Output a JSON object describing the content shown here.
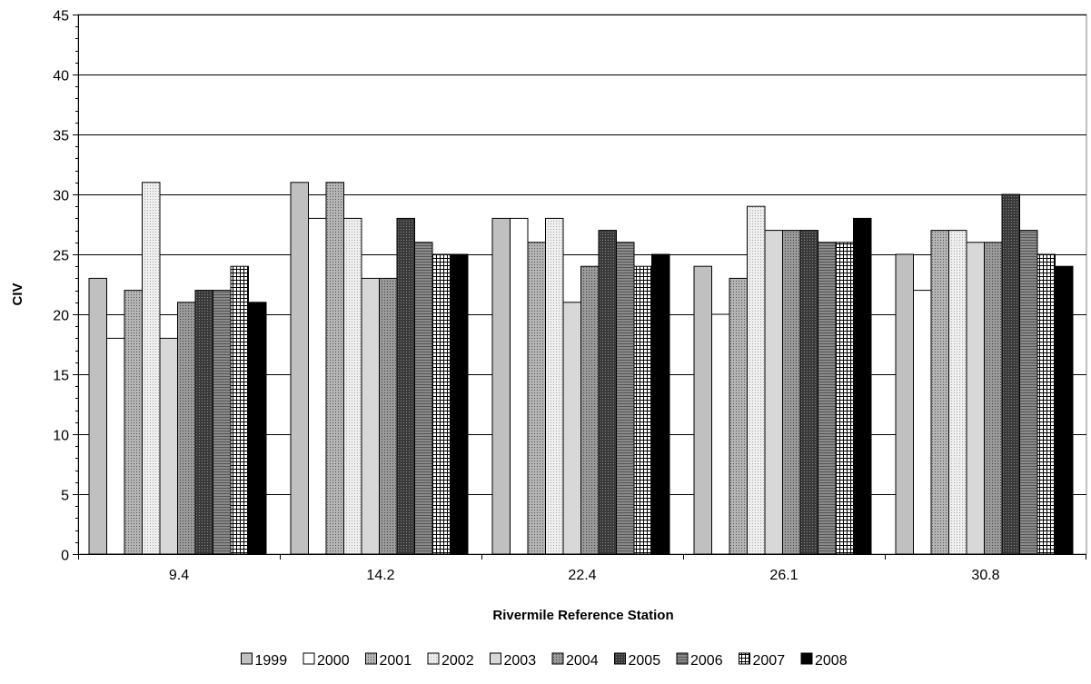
{
  "chart_data": {
    "type": "bar",
    "title": "",
    "xlabel": "Rivermile Reference Station",
    "ylabel": "CIV",
    "ylim": [
      0,
      45
    ],
    "yticks": [
      0,
      5,
      10,
      15,
      20,
      25,
      30,
      35,
      40,
      45
    ],
    "grid": true,
    "legend_position": "bottom",
    "categories": [
      "9.4",
      "14.2",
      "22.4",
      "26.1",
      "30.8"
    ],
    "series": [
      {
        "name": "1999",
        "values": [
          23,
          31,
          28,
          24,
          25
        ],
        "color": "#c0c0c0",
        "pattern": "solid"
      },
      {
        "name": "2000",
        "values": [
          18,
          28,
          28,
          20,
          22
        ],
        "color": "#ffffff",
        "pattern": "solid"
      },
      {
        "name": "2001",
        "values": [
          22,
          31,
          26,
          23,
          27
        ],
        "color": "#a8a8a8",
        "pattern": "dots"
      },
      {
        "name": "2002",
        "values": [
          31,
          28,
          28,
          29,
          27
        ],
        "color": "#e4e4e4",
        "pattern": "fine-dots"
      },
      {
        "name": "2003",
        "values": [
          18,
          23,
          21,
          27,
          26
        ],
        "color": "#d8d8d8",
        "pattern": "solid"
      },
      {
        "name": "2004",
        "values": [
          21,
          23,
          24,
          27,
          26
        ],
        "color": "#909090",
        "pattern": "dots"
      },
      {
        "name": "2005",
        "values": [
          22,
          28,
          27,
          27,
          30
        ],
        "color": "#4a4a4a",
        "pattern": "dots"
      },
      {
        "name": "2006",
        "values": [
          22,
          26,
          26,
          26,
          27
        ],
        "color": "#7a7a7a",
        "pattern": "hlines"
      },
      {
        "name": "2007",
        "values": [
          24,
          25,
          24,
          26,
          25
        ],
        "color": "#ffffff",
        "pattern": "grid"
      },
      {
        "name": "2008",
        "values": [
          21,
          25,
          25,
          28,
          24
        ],
        "color": "#000000",
        "pattern": "solid"
      }
    ]
  }
}
